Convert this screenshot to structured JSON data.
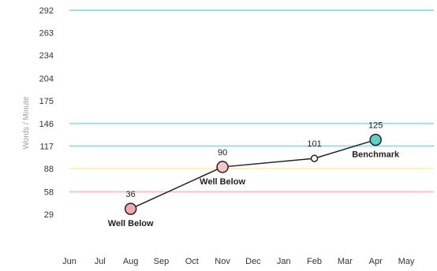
{
  "chart_data": {
    "type": "line",
    "ylabel": "Words / Minute",
    "x": [
      "Jun",
      "Jul",
      "Aug",
      "Sep",
      "Oct",
      "Nov",
      "Dec",
      "Jan",
      "Feb",
      "Mar",
      "Apr",
      "May"
    ],
    "yticks": [
      29,
      58,
      88,
      117,
      146,
      175,
      204,
      234,
      263,
      292
    ],
    "ylim": [
      0,
      292
    ],
    "points": [
      {
        "x": "Aug",
        "y": 36,
        "label": "36",
        "annotation": "Well Below",
        "color": "#f4a7b0"
      },
      {
        "x": "Nov",
        "y": 90,
        "label": "90",
        "annotation": "Well Below",
        "color": "#f4c6cc"
      },
      {
        "x": "Feb",
        "y": 101,
        "label": "101",
        "annotation": "",
        "color": "#ffffff"
      },
      {
        "x": "Apr",
        "y": 125,
        "label": "125",
        "annotation": "Benchmark",
        "color": "#5fd0c8"
      }
    ],
    "bands": [
      {
        "y": 292,
        "color": "#9fdde8"
      },
      {
        "y": 146,
        "color": "#9fdde8"
      },
      {
        "y": 117,
        "color": "#9fdde8"
      },
      {
        "y": 88,
        "color": "#fff2b3"
      },
      {
        "y": 58,
        "color": "#f7c6cc"
      }
    ],
    "line_color": "#222222"
  }
}
